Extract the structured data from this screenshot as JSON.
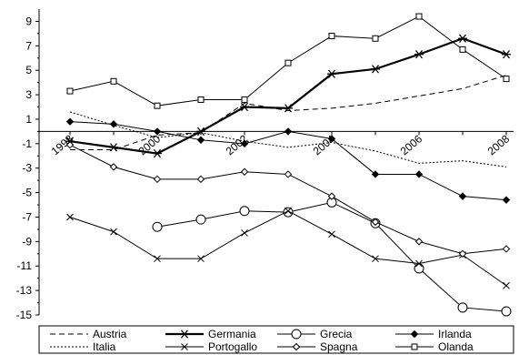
{
  "chart_data": {
    "type": "line",
    "x": [
      1998,
      1999,
      2000,
      2001,
      2002,
      2003,
      2004,
      2005,
      2006,
      2007,
      2008
    ],
    "x_tick_labels": [
      "1998",
      "2000",
      "2002",
      "2004",
      "2006",
      "2008"
    ],
    "y_tick_labels": [
      "9",
      "7",
      "5",
      "3",
      "1",
      "-1",
      "-3",
      "-5",
      "-7",
      "-9",
      "-11",
      "-13",
      "-15"
    ],
    "ylim": [
      -15,
      10
    ],
    "grid": false,
    "legend_position": "bottom",
    "series": [
      {
        "name": "Austria",
        "style": "dashed",
        "marker": "none",
        "values": [
          -1.5,
          -1.5,
          -0.3,
          -0.1,
          2.3,
          1.7,
          1.9,
          2.3,
          2.9,
          3.5,
          4.6
        ]
      },
      {
        "name": "Germania",
        "style": "thick",
        "marker": "star",
        "values": [
          -0.8,
          -1.3,
          -1.8,
          0.0,
          2.0,
          1.9,
          4.7,
          5.1,
          6.3,
          7.6,
          6.3
        ]
      },
      {
        "name": "Grecia",
        "style": "solid",
        "marker": "circle",
        "values": [
          null,
          null,
          -7.8,
          -7.2,
          -6.5,
          -6.6,
          -5.8,
          -7.5,
          -11.2,
          -14.4,
          -14.7
        ]
      },
      {
        "name": "Irlanda",
        "style": "solid",
        "marker": "diamond-filled",
        "values": [
          0.8,
          0.6,
          0.0,
          -0.7,
          -1.0,
          0.0,
          -0.6,
          -3.5,
          -3.5,
          -5.3,
          -5.6
        ]
      },
      {
        "name": "Italia",
        "style": "dotted",
        "marker": "none",
        "values": [
          1.6,
          0.5,
          -0.5,
          -0.1,
          -0.8,
          -1.3,
          -0.9,
          -1.6,
          -2.6,
          -2.4,
          -2.9
        ]
      },
      {
        "name": "Portogallo",
        "style": "solid",
        "marker": "x",
        "values": [
          -7.0,
          -8.2,
          -10.4,
          -10.4,
          -8.3,
          -6.5,
          -8.4,
          -10.4,
          -10.8,
          -10.1,
          -12.6
        ]
      },
      {
        "name": "Spagna",
        "style": "solid",
        "marker": "diamond-open",
        "values": [
          -1.1,
          -2.9,
          -3.9,
          -3.9,
          -3.3,
          -3.5,
          -5.3,
          -7.4,
          -9.0,
          -10.0,
          -9.6
        ]
      },
      {
        "name": "Olanda",
        "style": "solid",
        "marker": "square-open",
        "values": [
          3.3,
          4.1,
          2.1,
          2.6,
          2.6,
          5.6,
          7.8,
          7.6,
          9.4,
          6.7,
          4.3
        ]
      }
    ]
  }
}
